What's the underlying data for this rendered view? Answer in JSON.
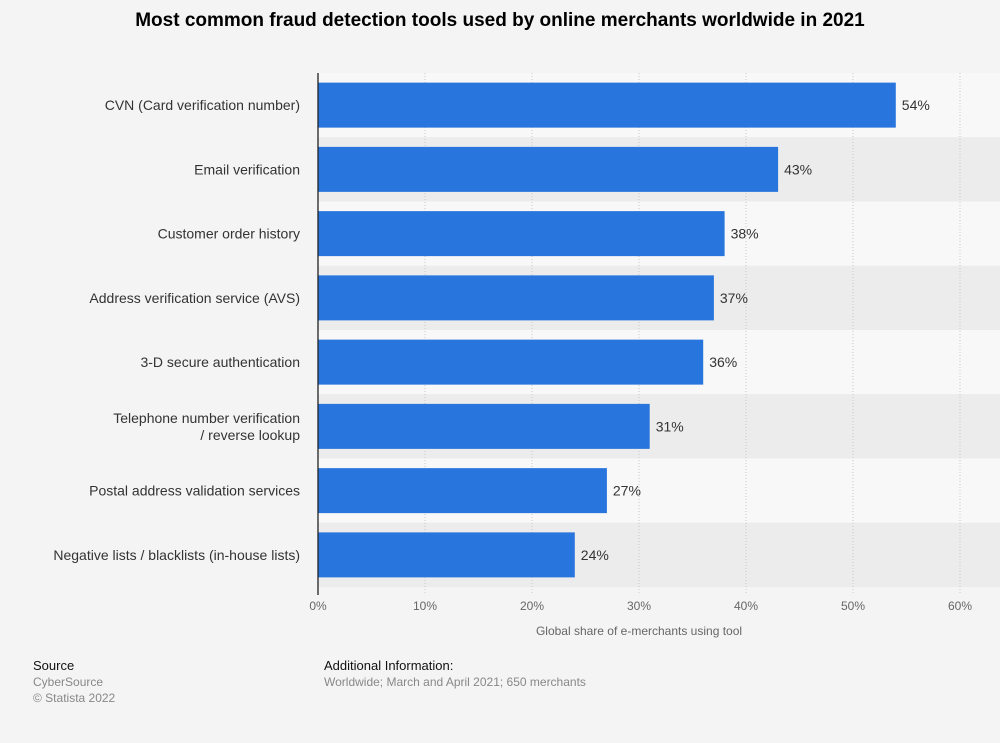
{
  "chart_data": {
    "type": "bar",
    "orientation": "horizontal",
    "title": "Most common fraud detection tools used by online merchants worldwide in 2021",
    "categories": [
      [
        "CVN (Card verification number)"
      ],
      [
        "Email verification"
      ],
      [
        "Customer order history"
      ],
      [
        "Address verification service (AVS)"
      ],
      [
        "3-D secure authentication"
      ],
      [
        "Telephone number verification",
        "/ reverse lookup"
      ],
      [
        "Postal address validation services"
      ],
      [
        "Negative lists / blacklists (in-house lists)"
      ]
    ],
    "values": [
      54,
      43,
      38,
      37,
      36,
      31,
      27,
      24
    ],
    "value_labels": [
      "54%",
      "43%",
      "38%",
      "37%",
      "36%",
      "31%",
      "27%",
      "24%"
    ],
    "xlabel": "Global share of e-merchants using tool",
    "xlim": [
      0,
      60
    ],
    "xticks": [
      0,
      10,
      20,
      30,
      40,
      50,
      60
    ],
    "xtick_labels": [
      "0%",
      "10%",
      "20%",
      "30%",
      "40%",
      "50%",
      "60%"
    ],
    "grid": true,
    "bar_color": "#2876dd"
  },
  "footer": {
    "source_heading": "Source",
    "source_name": "CyberSource",
    "copyright": "© Statista 2022",
    "info_heading": "Additional Information:",
    "info_text": "Worldwide; March and April 2021; 650 merchants"
  }
}
